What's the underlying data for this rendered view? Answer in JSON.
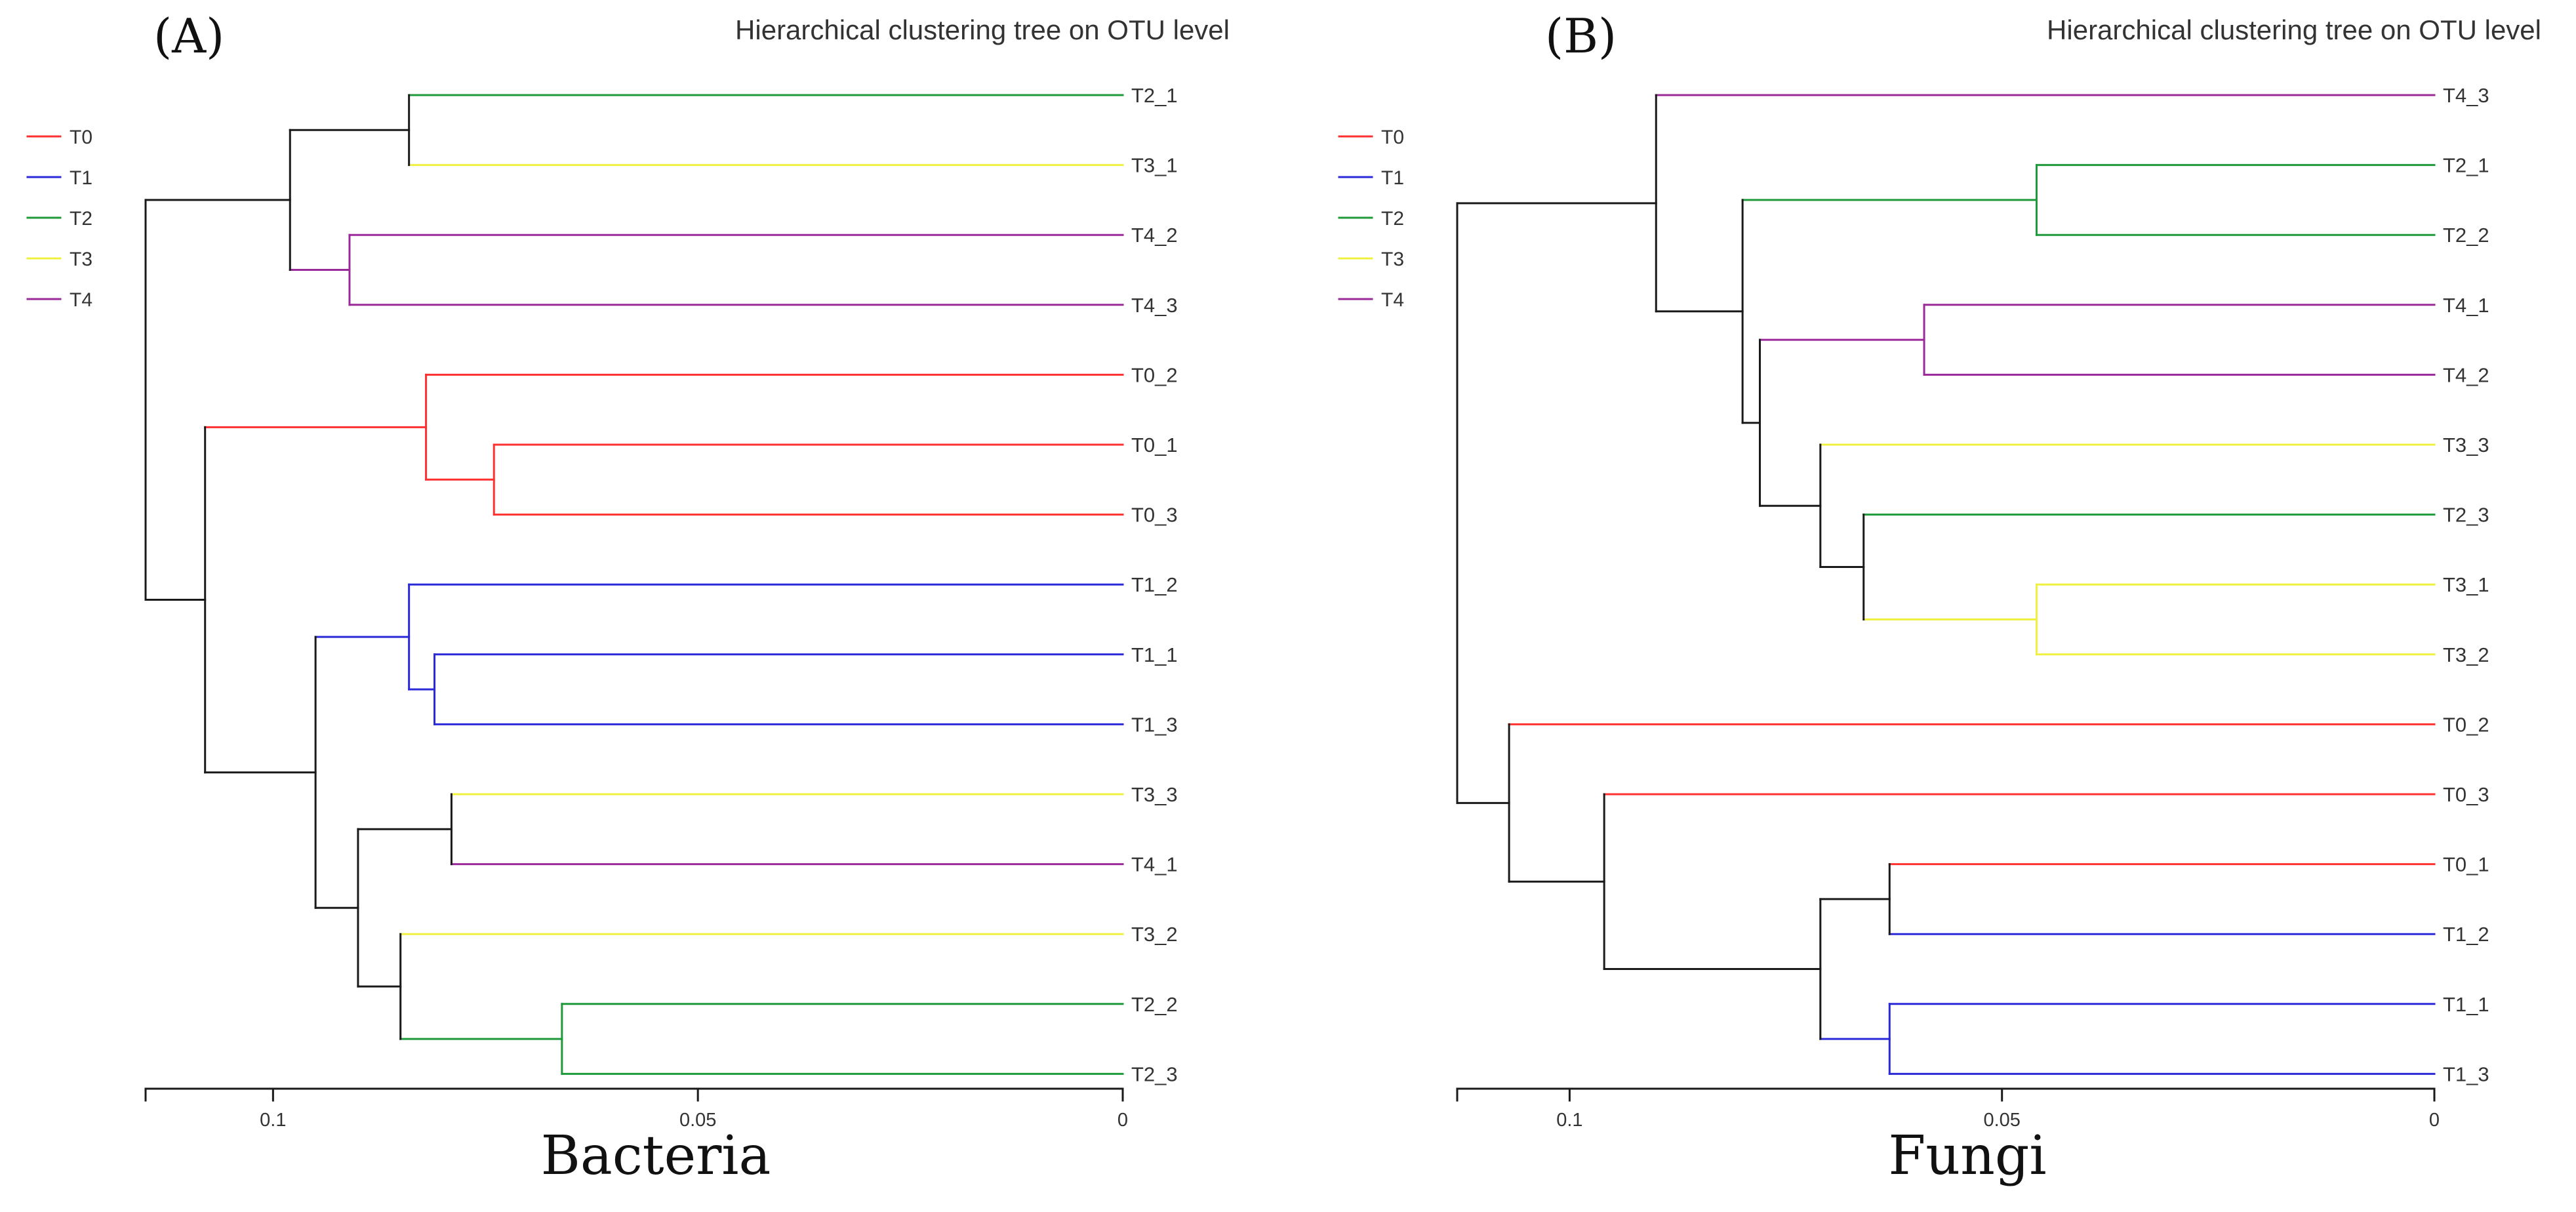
{
  "colors": {
    "T0": "#ff3030",
    "T1": "#2a2ad8",
    "T2": "#1f9a3a",
    "T3": "#f0f040",
    "T4": "#9a2a9a",
    "black": "#1a1a1a",
    "text": "#333333"
  },
  "chart_data": [
    {
      "type": "dendrogram",
      "panel_label": "(A)",
      "title": "Hierarchical clustering tree on OTU level",
      "xlabel": "Bacteria",
      "xlim": [
        0.115,
        0
      ],
      "ticks": [
        0.1,
        0.05,
        0
      ],
      "tick_labels": [
        "0.1",
        "0.05",
        "0"
      ],
      "legend": {
        "position": "top-left",
        "items": [
          {
            "label": "T0",
            "group": "T0"
          },
          {
            "label": "T1",
            "group": "T1"
          },
          {
            "label": "T2",
            "group": "T2"
          },
          {
            "label": "T3",
            "group": "T3"
          },
          {
            "label": "T4",
            "group": "T4"
          }
        ]
      },
      "leaves": [
        {
          "label": "T2_1",
          "group": "T2"
        },
        {
          "label": "T3_1",
          "group": "T3"
        },
        {
          "label": "T4_2",
          "group": "T4"
        },
        {
          "label": "T4_3",
          "group": "T4"
        },
        {
          "label": "T0_2",
          "group": "T0"
        },
        {
          "label": "T0_1",
          "group": "T0"
        },
        {
          "label": "T0_3",
          "group": "T0"
        },
        {
          "label": "T1_2",
          "group": "T1"
        },
        {
          "label": "T1_1",
          "group": "T1"
        },
        {
          "label": "T1_3",
          "group": "T1"
        },
        {
          "label": "T3_3",
          "group": "T3"
        },
        {
          "label": "T4_1",
          "group": "T4"
        },
        {
          "label": "T3_2",
          "group": "T3"
        },
        {
          "label": "T2_2",
          "group": "T2"
        },
        {
          "label": "T2_3",
          "group": "T2"
        }
      ],
      "tree": {
        "h": 0.115,
        "c": [
          {
            "h": 0.098,
            "c": [
              {
                "h": 0.084,
                "c": [
                  {
                    "leaf": "T2_1"
                  },
                  {
                    "leaf": "T3_1"
                  }
                ]
              },
              {
                "h": 0.091,
                "c": [
                  {
                    "leaf": "T4_2"
                  },
                  {
                    "leaf": "T4_3"
                  }
                ]
              }
            ]
          },
          {
            "h": 0.108,
            "c": [
              {
                "h": 0.082,
                "c": [
                  {
                    "leaf": "T0_2"
                  },
                  {
                    "h": 0.074,
                    "c": [
                      {
                        "leaf": "T0_1"
                      },
                      {
                        "leaf": "T0_3"
                      }
                    ]
                  }
                ]
              },
              {
                "h": 0.095,
                "c": [
                  {
                    "h": 0.084,
                    "c": [
                      {
                        "leaf": "T1_2"
                      },
                      {
                        "h": 0.081,
                        "c": [
                          {
                            "leaf": "T1_1"
                          },
                          {
                            "leaf": "T1_3"
                          }
                        ]
                      }
                    ]
                  },
                  {
                    "h": 0.09,
                    "c": [
                      {
                        "h": 0.079,
                        "c": [
                          {
                            "leaf": "T3_3"
                          },
                          {
                            "leaf": "T4_1"
                          }
                        ]
                      },
                      {
                        "h": 0.085,
                        "c": [
                          {
                            "leaf": "T3_2"
                          },
                          {
                            "h": 0.066,
                            "c": [
                              {
                                "leaf": "T2_2"
                              },
                              {
                                "leaf": "T2_3"
                              }
                            ]
                          }
                        ]
                      }
                    ]
                  }
                ]
              }
            ]
          }
        ]
      }
    },
    {
      "type": "dendrogram",
      "panel_label": "(B)",
      "title": "Hierarchical clustering tree on OTU level",
      "xlabel": "Fungi",
      "xlim": [
        0.113,
        0
      ],
      "ticks": [
        0.1,
        0.05,
        0
      ],
      "tick_labels": [
        "0.1",
        "0.05",
        "0"
      ],
      "legend": {
        "position": "top-left",
        "items": [
          {
            "label": "T0",
            "group": "T0"
          },
          {
            "label": "T1",
            "group": "T1"
          },
          {
            "label": "T2",
            "group": "T2"
          },
          {
            "label": "T3",
            "group": "T3"
          },
          {
            "label": "T4",
            "group": "T4"
          }
        ]
      },
      "leaves": [
        {
          "label": "T4_3",
          "group": "T4"
        },
        {
          "label": "T2_1",
          "group": "T2"
        },
        {
          "label": "T2_2",
          "group": "T2"
        },
        {
          "label": "T4_1",
          "group": "T4"
        },
        {
          "label": "T4_2",
          "group": "T4"
        },
        {
          "label": "T3_3",
          "group": "T3"
        },
        {
          "label": "T2_3",
          "group": "T2"
        },
        {
          "label": "T3_1",
          "group": "T3"
        },
        {
          "label": "T3_2",
          "group": "T3"
        },
        {
          "label": "T0_2",
          "group": "T0"
        },
        {
          "label": "T0_3",
          "group": "T0"
        },
        {
          "label": "T0_1",
          "group": "T0"
        },
        {
          "label": "T1_2",
          "group": "T1"
        },
        {
          "label": "T1_1",
          "group": "T1"
        },
        {
          "label": "T1_3",
          "group": "T1"
        }
      ],
      "tree": {
        "h": 0.113,
        "c": [
          {
            "h": 0.09,
            "c": [
              {
                "leaf": "T4_3"
              },
              {
                "h": 0.08,
                "c": [
                  {
                    "h": 0.046,
                    "c": [
                      {
                        "leaf": "T2_1"
                      },
                      {
                        "leaf": "T2_2"
                      }
                    ]
                  },
                  {
                    "h": 0.078,
                    "c": [
                      {
                        "h": 0.059,
                        "c": [
                          {
                            "leaf": "T4_1"
                          },
                          {
                            "leaf": "T4_2"
                          }
                        ]
                      },
                      {
                        "h": 0.071,
                        "c": [
                          {
                            "leaf": "T3_3"
                          },
                          {
                            "h": 0.066,
                            "c": [
                              {
                                "leaf": "T2_3"
                              },
                              {
                                "h": 0.046,
                                "c": [
                                  {
                                    "leaf": "T3_1"
                                  },
                                  {
                                    "leaf": "T3_2"
                                  }
                                ]
                              }
                            ]
                          }
                        ]
                      }
                    ]
                  }
                ]
              }
            ]
          },
          {
            "h": 0.107,
            "c": [
              {
                "leaf": "T0_2"
              },
              {
                "h": 0.096,
                "c": [
                  {
                    "leaf": "T0_3"
                  },
                  {
                    "h": 0.071,
                    "c": [
                      {
                        "h": 0.063,
                        "c": [
                          {
                            "leaf": "T0_1"
                          },
                          {
                            "leaf": "T1_2"
                          }
                        ]
                      },
                      {
                        "h": 0.063,
                        "c": [
                          {
                            "leaf": "T1_1"
                          },
                          {
                            "leaf": "T1_3"
                          }
                        ]
                      }
                    ]
                  }
                ]
              }
            ]
          }
        ]
      }
    }
  ]
}
